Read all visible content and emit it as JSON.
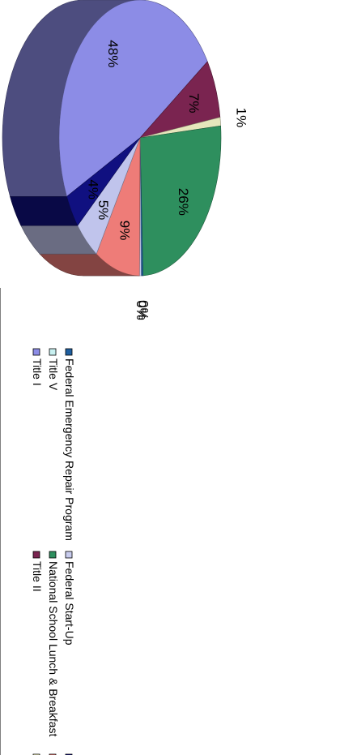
{
  "chart_data": {
    "type": "pie",
    "three_d": true,
    "orientation": "rotated 90 degrees clockwise",
    "series": [
      {
        "name": "Title I",
        "value": 48,
        "label": "48%",
        "color": "#8c8ce6"
      },
      {
        "name": "Title II",
        "value": 7,
        "label": "7%",
        "color": "#7a2450"
      },
      {
        "name": "Title V",
        "value": 1,
        "label": "1%",
        "color": "#e6e6bc"
      },
      {
        "name": "National School Lunch & Breakfast",
        "value": 26,
        "label": "26%",
        "color": "#2e8f5e"
      },
      {
        "name": "Federal Emergency Repair Program",
        "value": 0,
        "label": "0%",
        "color": "#1f5fa0"
      },
      {
        "name": "Federal Start-Up",
        "value": 0,
        "label": "0%",
        "color": "#c8ccee"
      },
      {
        "name": "",
        "value": 9,
        "label": "9%",
        "color": "#ee7c78"
      },
      {
        "name": "",
        "value": 5,
        "label": "5%",
        "color": "#c0c4ec"
      },
      {
        "name": "",
        "value": 4,
        "label": "4%",
        "color": "#101080"
      }
    ],
    "legend": {
      "placement": "bottom",
      "items": [
        {
          "name": "Title I",
          "color": "#8c8ce6"
        },
        {
          "name": "Title V",
          "color": "#c8f0f0"
        },
        {
          "name": "Federal Emergency Repair Program",
          "color": "#1f5fa0"
        },
        {
          "name": "Title II",
          "color": "#7a2450"
        },
        {
          "name": "National School Lunch & Breakfast",
          "color": "#2e8f5e"
        },
        {
          "name": "Federal Start-Up",
          "color": "#c8ccee"
        },
        {
          "name": "",
          "color": "#ffffcc"
        },
        {
          "name": "",
          "color": "#ee7c78"
        },
        {
          "name": "",
          "color": "#101080"
        }
      ]
    }
  }
}
